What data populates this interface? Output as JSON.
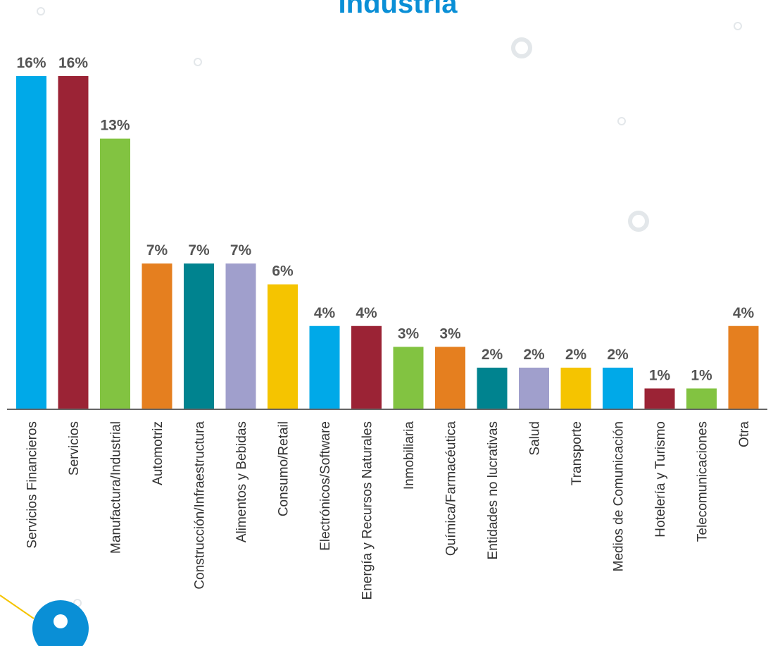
{
  "chart_data": {
    "type": "bar",
    "title": "Industria",
    "categories": [
      "Servicios Financieros",
      "Servicios",
      "Manufactura/Industrial",
      "Automotriz",
      "Construcción/Infraestructura",
      "Alimentos y Bebidas",
      "Consumo/Retail",
      "Electrónicos/Software",
      "Energía y Recursos Naturales",
      "Inmobiliaria",
      "Química/Farmacéutica",
      "Entidades no lucrativas",
      "Salud",
      "Transporte",
      "Medios de Comunicación",
      "Hotelería y Turismo",
      "Telecomunicaciones",
      "Otra"
    ],
    "values": [
      16,
      16,
      13,
      7,
      7,
      7,
      6,
      4,
      4,
      3,
      3,
      2,
      2,
      2,
      2,
      1,
      1,
      4
    ],
    "value_labels": [
      "16%",
      "16%",
      "13%",
      "7%",
      "7%",
      "7%",
      "6%",
      "4%",
      "4%",
      "3%",
      "3%",
      "2%",
      "2%",
      "2%",
      "2%",
      "1%",
      "1%",
      "4%"
    ],
    "colors": [
      "#00a9e8",
      "#9b2335",
      "#82c341",
      "#e57f1f",
      "#00838f",
      "#a09fcc",
      "#f5c400",
      "#00a9e8",
      "#9b2335",
      "#82c341",
      "#e57f1f",
      "#00838f",
      "#a09fcc",
      "#f5c400",
      "#00a9e8",
      "#9b2335",
      "#82c341",
      "#e57f1f"
    ],
    "ylim": [
      0,
      16
    ]
  }
}
